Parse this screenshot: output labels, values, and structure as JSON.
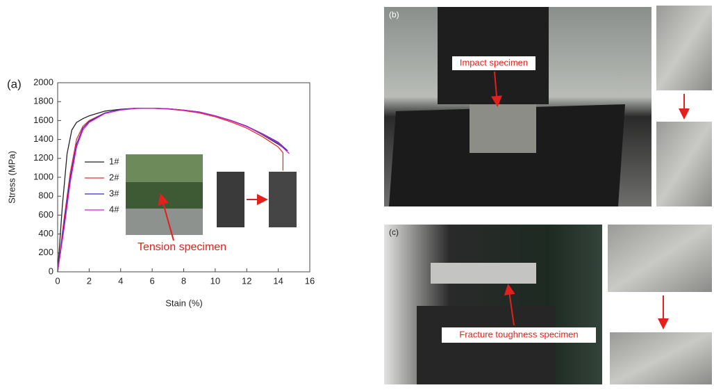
{
  "chart_data": {
    "type": "line",
    "panel_label": "(a)",
    "xlabel": "Stain (%)",
    "ylabel": "Stress (MPa)",
    "xlim": [
      0,
      16
    ],
    "xticks": [
      0,
      2,
      4,
      6,
      8,
      10,
      12,
      14,
      16
    ],
    "ylim": [
      0,
      2000
    ],
    "yticks": [
      0,
      200,
      400,
      600,
      800,
      1000,
      1200,
      1400,
      1600,
      1800,
      2000
    ],
    "annotation": "Tension specimen",
    "series": [
      {
        "name": "1#",
        "color": "#222222",
        "x": [
          0,
          0.3,
          0.6,
          0.9,
          1.2,
          1.6,
          2,
          3,
          4,
          5,
          6,
          7,
          8,
          9,
          10,
          11,
          12,
          13,
          14,
          14.5
        ],
        "values": [
          0,
          700,
          1250,
          1500,
          1580,
          1620,
          1650,
          1700,
          1720,
          1730,
          1730,
          1725,
          1710,
          1690,
          1650,
          1600,
          1540,
          1450,
          1350,
          1290
        ]
      },
      {
        "name": "2#",
        "color": "#e8302a",
        "x": [
          0,
          0.4,
          0.8,
          1.2,
          1.6,
          2,
          3,
          4,
          5,
          6,
          7,
          8,
          9,
          10,
          11,
          12,
          13,
          14,
          14.3,
          14.3
        ],
        "values": [
          0,
          550,
          1050,
          1400,
          1540,
          1600,
          1680,
          1715,
          1730,
          1730,
          1722,
          1705,
          1680,
          1640,
          1585,
          1520,
          1430,
          1320,
          1260,
          1070
        ]
      },
      {
        "name": "3#",
        "color": "#2b2bd6",
        "x": [
          0,
          0.4,
          0.8,
          1.2,
          1.6,
          2,
          3,
          4,
          5,
          6,
          7,
          8,
          9,
          10,
          11,
          12,
          13,
          14,
          14.6
        ],
        "values": [
          0,
          500,
          1000,
          1350,
          1520,
          1590,
          1680,
          1715,
          1730,
          1730,
          1725,
          1710,
          1690,
          1650,
          1600,
          1540,
          1460,
          1370,
          1280
        ]
      },
      {
        "name": "4#",
        "color": "#d020d0",
        "x": [
          0,
          0.4,
          0.8,
          1.2,
          1.6,
          2,
          3,
          4,
          5,
          6,
          7,
          8,
          9,
          10,
          11,
          12,
          13,
          14,
          14.7
        ],
        "values": [
          0,
          450,
          950,
          1320,
          1500,
          1580,
          1675,
          1712,
          1728,
          1730,
          1725,
          1710,
          1688,
          1648,
          1598,
          1535,
          1455,
          1360,
          1250
        ]
      }
    ]
  },
  "photos": {
    "b": {
      "label": "(b)",
      "caption": "Impact specimen"
    },
    "c": {
      "label": "(c)",
      "caption": "Fracture toughness specimen"
    }
  }
}
